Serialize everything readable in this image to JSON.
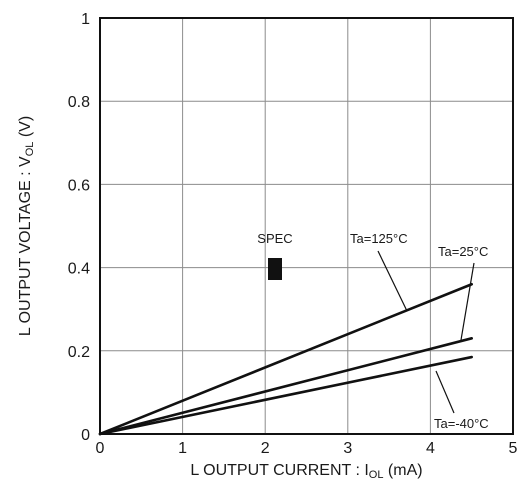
{
  "chart_data": {
    "type": "line",
    "xlabel": "L OUTPUT CURRENT : I",
    "xlabel_sub": "OL",
    "xlabel_unit": " (mA)",
    "ylabel": "L OUTPUT VOLTAGE : V",
    "ylabel_sub": "OL",
    "ylabel_unit": " (V)",
    "xlim": [
      0,
      5
    ],
    "ylim": [
      0,
      1
    ],
    "xticks": [
      "0",
      "1",
      "2",
      "3",
      "4",
      "5"
    ],
    "yticks": [
      "0",
      "0.2",
      "0.4",
      "0.6",
      "0.8",
      "1"
    ],
    "grid": true,
    "series": [
      {
        "name": "Ta=125°C",
        "x": [
          0,
          4.5
        ],
        "y": [
          0,
          0.36
        ]
      },
      {
        "name": "Ta=25°C",
        "x": [
          0,
          4.5
        ],
        "y": [
          0,
          0.23
        ]
      },
      {
        "name": "Ta=-40°C",
        "x": [
          0,
          4.5
        ],
        "y": [
          0,
          0.185
        ]
      }
    ],
    "annotations": [
      {
        "text": "SPEC",
        "x": 2.1,
        "y": 0.4,
        "marker": "filled-rectangle"
      }
    ],
    "colors": {
      "line": "#111111",
      "grid": "#8c8c8c"
    }
  }
}
